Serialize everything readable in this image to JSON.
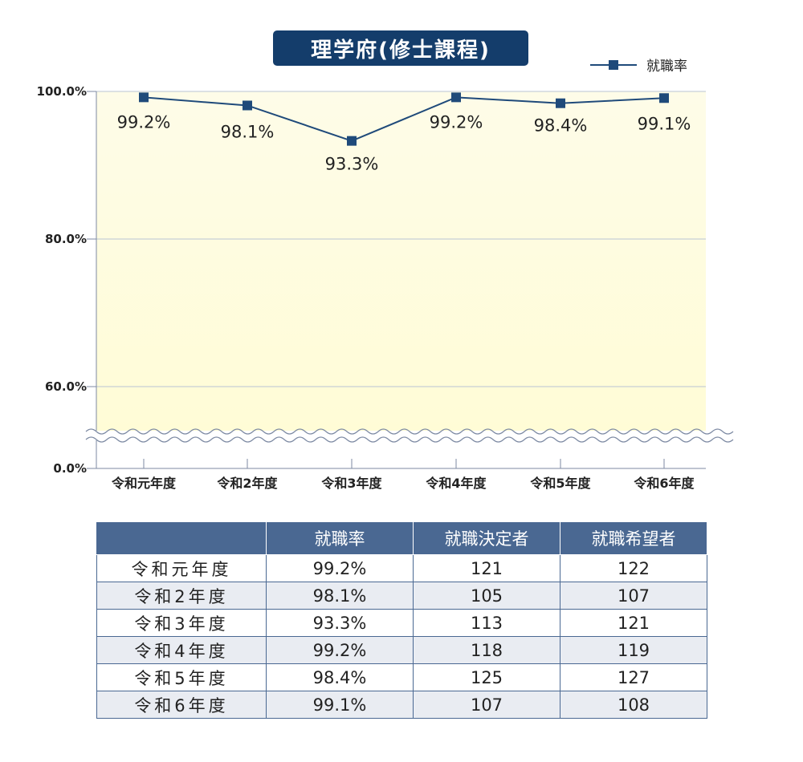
{
  "title": "理学府(修士課程)",
  "legend": {
    "label": "就職率"
  },
  "colors": {
    "line": "#1f4a7a",
    "title_bg": "#143d6b",
    "table_header": "#4a6892",
    "plot_top": "#fefce8",
    "plot_bottom": "#fffcd6"
  },
  "chart_data": {
    "type": "line",
    "categories": [
      "令和元年度",
      "令和2年度",
      "令和3年度",
      "令和4年度",
      "令和5年度",
      "令和6年度"
    ],
    "series": [
      {
        "name": "就職率",
        "values": [
          99.2,
          98.1,
          93.3,
          99.2,
          98.4,
          99.1
        ]
      }
    ],
    "data_labels": [
      "99.2%",
      "98.1%",
      "93.3%",
      "99.2%",
      "98.4%",
      "99.1%"
    ],
    "y_ticks": [
      "100.0%",
      "80.0%",
      "60.0%",
      "0.0%"
    ],
    "y_tick_values": [
      100,
      80,
      60,
      0
    ],
    "ylim": [
      0,
      100
    ],
    "axis_break": "between 60.0% and 0.0%",
    "grid": true,
    "legend_position": "top-right"
  },
  "table": {
    "headers": [
      "",
      "就職率",
      "就職決定者",
      "就職希望者"
    ],
    "rows": [
      [
        "令和元年度",
        "99.2%",
        "121",
        "122"
      ],
      [
        "令和2年度",
        "98.1%",
        "105",
        "107"
      ],
      [
        "令和3年度",
        "93.3%",
        "113",
        "121"
      ],
      [
        "令和4年度",
        "99.2%",
        "118",
        "119"
      ],
      [
        "令和5年度",
        "98.4%",
        "125",
        "127"
      ],
      [
        "令和6年度",
        "99.1%",
        "107",
        "108"
      ]
    ]
  }
}
